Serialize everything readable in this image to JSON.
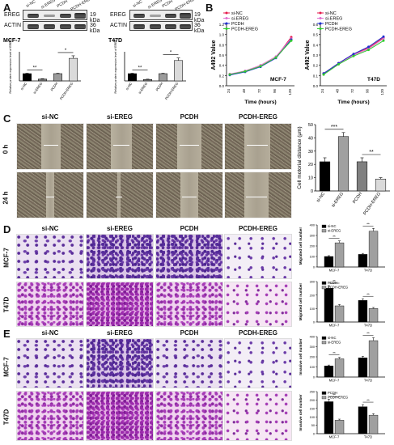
{
  "panels": {
    "a": "A",
    "b": "B",
    "c": "C",
    "d": "D",
    "e": "E"
  },
  "blot": {
    "protein": "EREG",
    "control": "ACTIN",
    "kda_ereg": "19 kDa",
    "kda_actin": "36 kDa",
    "lanes": [
      "si-NC",
      "si-EREG",
      "PCDH",
      "PCDH-EREG"
    ]
  },
  "wound": {
    "cols": [
      "si-NC",
      "si-EREG",
      "PCDH",
      "PCDH-EREG"
    ],
    "rows": [
      "0 h",
      "24 h"
    ]
  },
  "transwell": {
    "cols": [
      "si-NC",
      "si-EREG",
      "PCDH",
      "PCDH-EREG"
    ],
    "rows": [
      "MCF-7",
      "T47D"
    ]
  },
  "chart_data": [
    {
      "id": "A-mcf7",
      "type": "bar",
      "title": "MCF-7",
      "ylabel": "Relative protein expression level of EREG",
      "categories": [
        "si-NC",
        "si-EREG",
        "PCDH",
        "PCDH-EREG"
      ],
      "values": [
        1.0,
        0.25,
        1.0,
        3.1
      ],
      "errors": [
        0.05,
        0.05,
        0.05,
        0.35
      ],
      "colors": [
        "#000000",
        "#7a7a7a",
        "#9b9b9b",
        "#dadada"
      ],
      "ylim": [
        0,
        4
      ],
      "annotations": [
        "**",
        "*"
      ]
    },
    {
      "id": "A-t47d",
      "type": "bar",
      "title": "T47D",
      "ylabel": "Relative protein expression level of EREG",
      "categories": [
        "si-NC",
        "si-EREG",
        "PCDH",
        "PCDH-EREG"
      ],
      "values": [
        1.0,
        0.2,
        1.0,
        2.8
      ],
      "errors": [
        0.05,
        0.04,
        0.05,
        0.35
      ],
      "colors": [
        "#000000",
        "#7a7a7a",
        "#9b9b9b",
        "#dadada"
      ],
      "ylim": [
        0,
        4
      ],
      "annotations": [
        "**",
        "*"
      ]
    },
    {
      "id": "B-mcf7",
      "type": "line",
      "label": "MCF-7",
      "xlabel": "Time (hours)",
      "ylabel": "A492 Value",
      "x": [
        24,
        48,
        72,
        96,
        120
      ],
      "ylim": [
        0.0,
        1.2
      ],
      "yticks": [
        0.0,
        0.2,
        0.4,
        0.6,
        0.8,
        1.0,
        1.2
      ],
      "series": [
        {
          "name": "si-NC",
          "color": "#e6194b",
          "values": [
            0.22,
            0.28,
            0.38,
            0.55,
            0.95
          ]
        },
        {
          "name": "si-EREG",
          "color": "#e070d0",
          "values": [
            0.23,
            0.29,
            0.4,
            0.57,
            0.92
          ]
        },
        {
          "name": "PCDH",
          "color": "#1f2fd0",
          "values": [
            0.21,
            0.27,
            0.37,
            0.54,
            0.9
          ]
        },
        {
          "name": "PCDH-EREG",
          "color": "#2ecc2e",
          "values": [
            0.22,
            0.28,
            0.38,
            0.55,
            0.88
          ]
        }
      ]
    },
    {
      "id": "B-t47d",
      "type": "line",
      "label": "T47D",
      "xlabel": "Time (hours)",
      "ylabel": "A492 Value",
      "x": [
        24,
        48,
        72,
        96,
        120
      ],
      "ylim": [
        0.0,
        0.6
      ],
      "yticks": [
        0.0,
        0.1,
        0.2,
        0.3,
        0.4,
        0.5,
        0.6
      ],
      "series": [
        {
          "name": "si-NC",
          "color": "#e6194b",
          "values": [
            0.12,
            0.22,
            0.31,
            0.37,
            0.47
          ]
        },
        {
          "name": "si-EREG",
          "color": "#e070d0",
          "values": [
            0.11,
            0.21,
            0.3,
            0.36,
            0.46
          ]
        },
        {
          "name": "PCDH",
          "color": "#1f2fd0",
          "values": [
            0.12,
            0.22,
            0.31,
            0.38,
            0.48
          ]
        },
        {
          "name": "PCDH-EREG",
          "color": "#2ecc2e",
          "values": [
            0.11,
            0.21,
            0.29,
            0.35,
            0.44
          ]
        }
      ]
    },
    {
      "id": "C",
      "type": "bar",
      "ylabel": "Cell motorial distance (μm)",
      "categories": [
        "si-NC",
        "si-EREG",
        "PCDH",
        "PCDH-EREG"
      ],
      "values": [
        22,
        41,
        22,
        9
      ],
      "errors": [
        3,
        3,
        3,
        1
      ],
      "colors": [
        "#000000",
        "#a0a0a0",
        "#808080",
        "#dadada"
      ],
      "ylim": [
        0,
        50
      ],
      "yticks": [
        0,
        10,
        20,
        30,
        40,
        50
      ],
      "annotations": [
        "***",
        "**"
      ]
    },
    {
      "id": "D-top",
      "type": "bar",
      "ylabel": "Migrated cell number",
      "categories": [
        "MCF-7",
        "T47D"
      ],
      "series": [
        {
          "name": "si-NC",
          "color": "#000000",
          "values": [
            100,
            120
          ]
        },
        {
          "name": "si-EREG",
          "color": "#a0a0a0",
          "values": [
            230,
            340
          ]
        }
      ],
      "ylim": [
        0,
        400
      ],
      "yticks": [
        0,
        100,
        200,
        300,
        400
      ],
      "annotations": [
        "**",
        "**"
      ]
    },
    {
      "id": "D-bottom",
      "type": "bar",
      "ylabel": "Migrated cell number",
      "categories": [
        "MCF-7",
        "T47D"
      ],
      "series": [
        {
          "name": "PCDH",
          "color": "#000000",
          "values": [
            250,
            160
          ]
        },
        {
          "name": "PCDH-EREG",
          "color": "#a0a0a0",
          "values": [
            120,
            100
          ]
        }
      ],
      "ylim": [
        0,
        300
      ],
      "yticks": [
        0,
        100,
        200,
        300
      ],
      "annotations": [
        "**",
        "**"
      ]
    },
    {
      "id": "E-top",
      "type": "bar",
      "ylabel": "Invasive cell number",
      "categories": [
        "MCF-7",
        "T47D"
      ],
      "series": [
        {
          "name": "si-NC",
          "color": "#000000",
          "values": [
            110,
            190
          ]
        },
        {
          "name": "si-EREG",
          "color": "#a0a0a0",
          "values": [
            180,
            360
          ]
        }
      ],
      "ylim": [
        0,
        400
      ],
      "yticks": [
        0,
        100,
        200,
        300,
        400
      ],
      "annotations": [
        "**",
        "**"
      ]
    },
    {
      "id": "E-bottom",
      "type": "bar",
      "ylabel": "Invasive cell number",
      "categories": [
        "MCF-7",
        "T47D"
      ],
      "series": [
        {
          "name": "PCDH",
          "color": "#000000",
          "values": [
            190,
            160
          ]
        },
        {
          "name": "PCDH-EREG",
          "color": "#a0a0a0",
          "values": [
            80,
            110
          ]
        }
      ],
      "ylim": [
        0,
        250
      ],
      "yticks": [
        0,
        50,
        100,
        150,
        200,
        250
      ],
      "annotations": [
        "**",
        "**"
      ]
    }
  ]
}
